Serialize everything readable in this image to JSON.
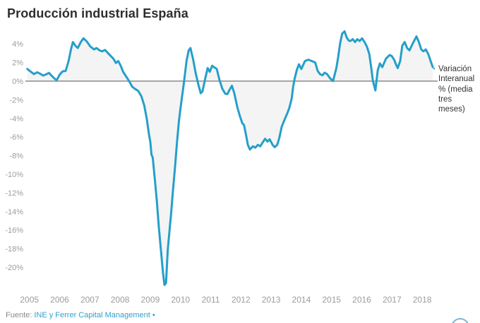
{
  "title": "Producción industrial España",
  "annotation": {
    "text": "Variación Interanual % (media tres meses)"
  },
  "footer": {
    "prefix": "Fuente: ",
    "link": "INE y Ferrer Capital Management",
    "suffix": " •"
  },
  "colors": {
    "line": "#259fca",
    "area": "#f4f4f4",
    "zero_line": "#8c8c8c",
    "tick_text": "#9c9c9c",
    "title_text": "#2e2e2e",
    "annotation_text": "#333333",
    "link": "#2ea0d0",
    "corner_widget": "#79b5d8"
  },
  "chart_data": {
    "type": "line",
    "title": "Producción industrial España",
    "xlabel": "",
    "ylabel": "Variación Interanual % (media tres meses)",
    "grid": false,
    "legend_position": "right-annotation",
    "xlim": [
      2004.85,
      2018.6
    ],
    "ylim": [
      -22.5,
      5.6
    ],
    "x_tick_values": [
      2005,
      2006,
      2007,
      2008,
      2009,
      2010,
      2011,
      2012,
      2013,
      2014,
      2015,
      2016,
      2017,
      2018
    ],
    "x_tick_labels": [
      "2005",
      "2006",
      "2007",
      "2008",
      "2009",
      "2010",
      "2011",
      "2012",
      "2013",
      "2014",
      "2015",
      "2016",
      "2017",
      "2018"
    ],
    "y_tick_values": [
      4,
      2,
      0,
      -2,
      -4,
      -6,
      -8,
      -10,
      -12,
      -14,
      -16,
      -18,
      -20
    ],
    "y_tick_labels": [
      "4%",
      "2%",
      "0%",
      "-2%",
      "-4%",
      "-6%",
      "-8%",
      "-10%",
      "-12%",
      "-14%",
      "-16%",
      "-18%",
      "-20%"
    ],
    "series": [
      {
        "name": "Variación Interanual % (media tres meses)",
        "points": [
          [
            2004.93,
            1.3
          ],
          [
            2005.05,
            1.0
          ],
          [
            2005.15,
            0.75
          ],
          [
            2005.25,
            0.95
          ],
          [
            2005.35,
            0.8
          ],
          [
            2005.45,
            0.6
          ],
          [
            2005.55,
            0.72
          ],
          [
            2005.65,
            0.88
          ],
          [
            2005.73,
            0.6
          ],
          [
            2005.82,
            0.3
          ],
          [
            2005.9,
            0.08
          ],
          [
            2006.0,
            0.7
          ],
          [
            2006.1,
            1.05
          ],
          [
            2006.2,
            1.1
          ],
          [
            2006.3,
            2.2
          ],
          [
            2006.38,
            3.5
          ],
          [
            2006.44,
            4.2
          ],
          [
            2006.52,
            3.8
          ],
          [
            2006.6,
            3.55
          ],
          [
            2006.7,
            4.2
          ],
          [
            2006.79,
            4.6
          ],
          [
            2006.9,
            4.25
          ],
          [
            2007.02,
            3.7
          ],
          [
            2007.14,
            3.4
          ],
          [
            2007.22,
            3.55
          ],
          [
            2007.32,
            3.3
          ],
          [
            2007.41,
            3.2
          ],
          [
            2007.5,
            3.35
          ],
          [
            2007.63,
            2.9
          ],
          [
            2007.78,
            2.4
          ],
          [
            2007.86,
            1.95
          ],
          [
            2007.94,
            2.15
          ],
          [
            2008.02,
            1.65
          ],
          [
            2008.1,
            1.0
          ],
          [
            2008.22,
            0.4
          ],
          [
            2008.3,
            0.0
          ],
          [
            2008.4,
            -0.6
          ],
          [
            2008.5,
            -0.85
          ],
          [
            2008.6,
            -1.05
          ],
          [
            2008.7,
            -1.6
          ],
          [
            2008.8,
            -2.6
          ],
          [
            2008.88,
            -4.0
          ],
          [
            2008.96,
            -5.8
          ],
          [
            2009.0,
            -6.5
          ],
          [
            2009.04,
            -7.9
          ],
          [
            2009.08,
            -8.2
          ],
          [
            2009.15,
            -10.5
          ],
          [
            2009.22,
            -13.0
          ],
          [
            2009.28,
            -15.6
          ],
          [
            2009.35,
            -18.1
          ],
          [
            2009.42,
            -20.6
          ],
          [
            2009.47,
            -21.9
          ],
          [
            2009.52,
            -21.7
          ],
          [
            2009.58,
            -18.1
          ],
          [
            2009.65,
            -15.6
          ],
          [
            2009.68,
            -14.6
          ],
          [
            2009.75,
            -11.8
          ],
          [
            2009.82,
            -9.2
          ],
          [
            2009.88,
            -6.7
          ],
          [
            2009.95,
            -4.2
          ],
          [
            2010.02,
            -2.4
          ],
          [
            2010.1,
            -0.5
          ],
          [
            2010.2,
            2.2
          ],
          [
            2010.27,
            3.3
          ],
          [
            2010.33,
            3.55
          ],
          [
            2010.42,
            2.3
          ],
          [
            2010.5,
            0.9
          ],
          [
            2010.6,
            -0.5
          ],
          [
            2010.67,
            -1.3
          ],
          [
            2010.73,
            -1.1
          ],
          [
            2010.82,
            0.3
          ],
          [
            2010.9,
            1.4
          ],
          [
            2010.97,
            1.0
          ],
          [
            2011.05,
            1.65
          ],
          [
            2011.11,
            1.5
          ],
          [
            2011.2,
            1.3
          ],
          [
            2011.28,
            0.25
          ],
          [
            2011.38,
            -0.8
          ],
          [
            2011.48,
            -1.35
          ],
          [
            2011.55,
            -1.4
          ],
          [
            2011.63,
            -0.9
          ],
          [
            2011.7,
            -0.5
          ],
          [
            2011.78,
            -1.3
          ],
          [
            2011.88,
            -2.8
          ],
          [
            2011.97,
            -3.8
          ],
          [
            2012.05,
            -4.55
          ],
          [
            2012.1,
            -4.7
          ],
          [
            2012.17,
            -5.8
          ],
          [
            2012.23,
            -6.85
          ],
          [
            2012.3,
            -7.35
          ],
          [
            2012.4,
            -7.0
          ],
          [
            2012.48,
            -7.15
          ],
          [
            2012.56,
            -6.85
          ],
          [
            2012.64,
            -7.0
          ],
          [
            2012.72,
            -6.6
          ],
          [
            2012.8,
            -6.2
          ],
          [
            2012.88,
            -6.5
          ],
          [
            2012.95,
            -6.25
          ],
          [
            2013.05,
            -6.85
          ],
          [
            2013.12,
            -7.1
          ],
          [
            2013.2,
            -6.85
          ],
          [
            2013.27,
            -6.1
          ],
          [
            2013.35,
            -4.9
          ],
          [
            2013.45,
            -4.1
          ],
          [
            2013.53,
            -3.5
          ],
          [
            2013.6,
            -2.9
          ],
          [
            2013.68,
            -1.9
          ],
          [
            2013.73,
            -0.6
          ],
          [
            2013.78,
            0.3
          ],
          [
            2013.85,
            1.2
          ],
          [
            2013.92,
            1.8
          ],
          [
            2014.0,
            1.3
          ],
          [
            2014.12,
            2.15
          ],
          [
            2014.23,
            2.3
          ],
          [
            2014.35,
            2.15
          ],
          [
            2014.46,
            2.0
          ],
          [
            2014.54,
            1.1
          ],
          [
            2014.62,
            0.75
          ],
          [
            2014.7,
            0.63
          ],
          [
            2014.77,
            0.9
          ],
          [
            2014.85,
            0.76
          ],
          [
            2014.95,
            0.3
          ],
          [
            2015.05,
            0.0
          ],
          [
            2015.16,
            1.4
          ],
          [
            2015.22,
            2.6
          ],
          [
            2015.28,
            4.0
          ],
          [
            2015.35,
            5.1
          ],
          [
            2015.43,
            5.35
          ],
          [
            2015.5,
            4.7
          ],
          [
            2015.57,
            4.35
          ],
          [
            2015.62,
            4.3
          ],
          [
            2015.7,
            4.5
          ],
          [
            2015.78,
            4.2
          ],
          [
            2015.85,
            4.5
          ],
          [
            2015.93,
            4.3
          ],
          [
            2016.01,
            4.6
          ],
          [
            2016.09,
            4.2
          ],
          [
            2016.17,
            3.7
          ],
          [
            2016.25,
            2.9
          ],
          [
            2016.31,
            1.5
          ],
          [
            2016.37,
            0.0
          ],
          [
            2016.45,
            -1.0
          ],
          [
            2016.53,
            1.2
          ],
          [
            2016.6,
            1.9
          ],
          [
            2016.68,
            1.5
          ],
          [
            2016.8,
            2.4
          ],
          [
            2016.92,
            2.8
          ],
          [
            2016.99,
            2.7
          ],
          [
            2017.07,
            2.3
          ],
          [
            2017.13,
            1.8
          ],
          [
            2017.19,
            1.4
          ],
          [
            2017.27,
            2.15
          ],
          [
            2017.34,
            3.8
          ],
          [
            2017.42,
            4.2
          ],
          [
            2017.5,
            3.55
          ],
          [
            2017.58,
            3.3
          ],
          [
            2017.69,
            4.05
          ],
          [
            2017.81,
            4.8
          ],
          [
            2017.89,
            4.2
          ],
          [
            2017.97,
            3.4
          ],
          [
            2018.04,
            3.2
          ],
          [
            2018.12,
            3.4
          ],
          [
            2018.2,
            2.9
          ],
          [
            2018.28,
            2.15
          ],
          [
            2018.35,
            1.5
          ]
        ]
      }
    ]
  }
}
